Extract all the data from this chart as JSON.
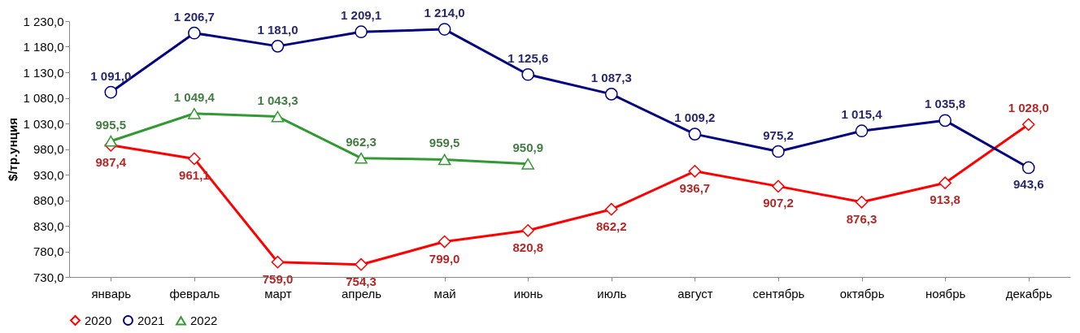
{
  "chart_data": {
    "type": "line",
    "ylabel": "$/тр.унция",
    "categories": [
      "январь",
      "февраль",
      "март",
      "апрель",
      "май",
      "июнь",
      "июль",
      "август",
      "сентябрь",
      "октябрь",
      "ноябрь",
      "декабрь"
    ],
    "ylim": [
      730,
      1230
    ],
    "yticks": [
      {
        "value": 730,
        "label": "730,0"
      },
      {
        "value": 780,
        "label": "780,0"
      },
      {
        "value": 830,
        "label": "830,0"
      },
      {
        "value": 880,
        "label": "880,0"
      },
      {
        "value": 930,
        "label": "930,0"
      },
      {
        "value": 980,
        "label": "980,0"
      },
      {
        "value": 1030,
        "label": "1 030,0"
      },
      {
        "value": 1080,
        "label": "1 080,0"
      },
      {
        "value": 1130,
        "label": "1 130,0"
      },
      {
        "value": 1180,
        "label": "1 180,0"
      },
      {
        "value": 1230,
        "label": "1 230,0"
      }
    ],
    "grid": false,
    "legend": "bottom",
    "line_style": "solid",
    "series": [
      {
        "name": "2020",
        "color": "#ff0000",
        "marker": "diamond",
        "values": [
          987.4,
          961.1,
          759.0,
          754.3,
          799.0,
          820.8,
          862.2,
          936.7,
          907.2,
          876.3,
          913.8,
          1028.0
        ],
        "value_labels": [
          "987,4",
          "961,1",
          "759,0",
          "754,3",
          "799,0",
          "820,8",
          "862,2",
          "936,7",
          "907,2",
          "876,3",
          "913,8",
          "1 028,0"
        ]
      },
      {
        "name": "2021",
        "color": "#000080",
        "marker": "circle",
        "values": [
          1091.0,
          1206.7,
          1181.0,
          1209.1,
          1214.0,
          1125.6,
          1087.3,
          1009.2,
          975.2,
          1015.4,
          1035.8,
          943.6
        ],
        "value_labels": [
          "1 091,0",
          "1 206,7",
          "1 181,0",
          "1 209,1",
          "1 214,0",
          "1 125,6",
          "1 087,3",
          "1 009,2",
          "975,2",
          "1 015,4",
          "1 035,8",
          "943,6"
        ]
      },
      {
        "name": "2022",
        "color": "#339933",
        "marker": "triangle",
        "values": [
          995.5,
          1049.4,
          1043.3,
          962.3,
          959.5,
          950.9,
          null,
          null,
          null,
          null,
          null,
          null
        ],
        "value_labels": [
          "995,5",
          "1 049,4",
          "1 043,3",
          "962,3",
          "959,5",
          "950,9",
          null,
          null,
          null,
          null,
          null,
          null
        ]
      }
    ]
  }
}
